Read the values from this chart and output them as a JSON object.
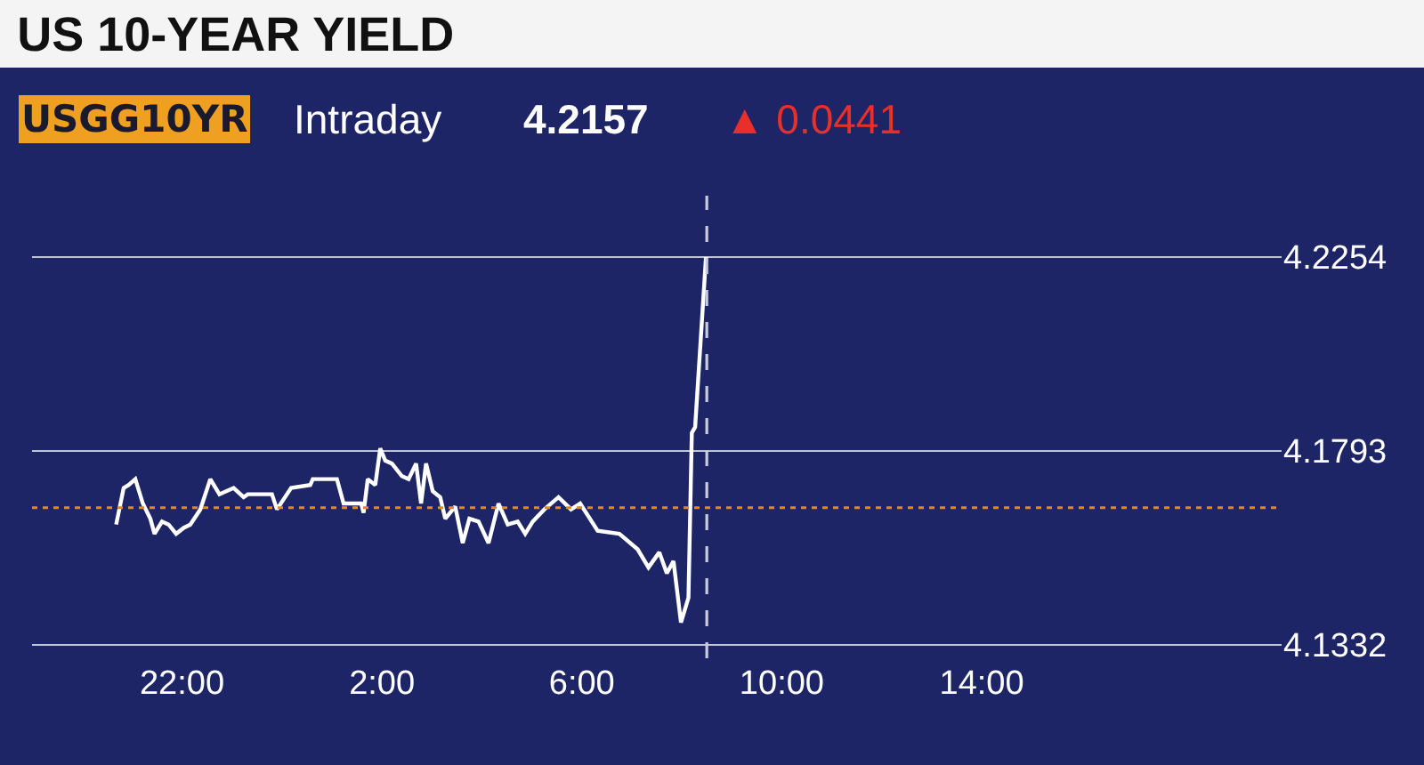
{
  "chart_data": {
    "type": "line",
    "title": "US 10-YEAR YIELD",
    "annotations": [
      "USGG10YR",
      "Intraday",
      "4.2157",
      "▲ 0.0441"
    ],
    "x": [
      "2000-01-01T20:41",
      "2000-01-01T20:50",
      "2000-01-01T20:56",
      "2000-01-01T21:04",
      "2000-01-01T21:13",
      "2000-01-01T21:22",
      "2000-01-01T21:27",
      "2000-01-01T21:36",
      "2000-01-01T21:44",
      "2000-01-01T21:53",
      "2000-01-01T22:02",
      "2000-01-01T22:10",
      "2000-01-01T22:22",
      "2000-01-01T22:34",
      "2000-01-01T22:45",
      "2000-01-01T23:02",
      "2000-01-01T23:14",
      "2000-01-01T23:19",
      "2000-01-01T23:48",
      "2000-01-01T23:54",
      "2000-01-02T00:11",
      "2000-01-02T00:34",
      "2000-01-02T00:37",
      "2000-01-02T01:06",
      "2000-01-02T01:14",
      "2000-01-02T01:35",
      "2000-01-02T01:38",
      "2000-01-02T01:43",
      "2000-01-02T01:52",
      "2000-01-02T01:58",
      "2000-01-02T02:04",
      "2000-01-02T02:12",
      "2000-01-02T02:24",
      "2000-01-02T02:32",
      "2000-01-02T02:41",
      "2000-01-02T02:47",
      "2000-01-02T02:53",
      "2000-01-02T03:01",
      "2000-01-02T03:10",
      "2000-01-02T03:16",
      "2000-01-02T03:28",
      "2000-01-02T03:37",
      "2000-01-02T03:45",
      "2000-01-02T03:56",
      "2000-01-02T04:08",
      "2000-01-02T04:20",
      "2000-01-02T04:31",
      "2000-01-02T04:43",
      "2000-01-02T04:52",
      "2000-01-02T05:01",
      "2000-01-02T05:15",
      "2000-01-02T05:32",
      "2000-01-02T05:47",
      "2000-01-02T05:58",
      "2000-01-02T06:19",
      "2000-01-02T06:45",
      "2000-01-02T07:07",
      "2000-01-02T07:20",
      "2000-01-02T07:33",
      "2000-01-02T07:42",
      "2000-01-02T07:50",
      "2000-01-02T07:59",
      "2000-01-02T08:08",
      "2000-01-02T08:12",
      "2000-01-02T08:16",
      "2000-01-02T08:29"
    ],
    "series": [
      {
        "color": "#ffffff",
        "values": [
          4.1618,
          4.1705,
          4.1712,
          4.1726,
          4.1668,
          4.1632,
          4.1596,
          4.1625,
          4.1618,
          4.1596,
          4.161,
          4.1618,
          4.1654,
          4.1726,
          4.169,
          4.1705,
          4.1683,
          4.169,
          4.169,
          4.1654,
          4.1705,
          4.1712,
          4.1726,
          4.1726,
          4.1668,
          4.1668,
          4.1646,
          4.1726,
          4.1712,
          4.1799,
          4.177,
          4.1763,
          4.1733,
          4.1726,
          4.1763,
          4.1668,
          4.1763,
          4.1697,
          4.1683,
          4.1632,
          4.1661,
          4.1574,
          4.1632,
          4.1625,
          4.1574,
          4.1668,
          4.1618,
          4.1625,
          4.1596,
          4.1625,
          4.1654,
          4.1683,
          4.1654,
          4.1668,
          4.1603,
          4.1596,
          4.1559,
          4.1516,
          4.1552,
          4.1502,
          4.1531,
          4.1385,
          4.1444,
          4.1836,
          4.185,
          4.2254
        ]
      }
    ],
    "xlim": [
      "2000-01-01T19:00",
      "2000-01-02T20:00"
    ],
    "xticks": [
      {
        "value": "2000-01-01T22:00",
        "label": "22:00"
      },
      {
        "value": "2000-01-02T02:00",
        "label": "2:00"
      },
      {
        "value": "2000-01-02T06:00",
        "label": "6:00"
      },
      {
        "value": "2000-01-02T10:00",
        "label": "10:00"
      },
      {
        "value": "2000-01-02T14:00",
        "label": "14:00"
      }
    ],
    "ylim": [
      4.13,
      4.24
    ],
    "yticks": [
      4.1332,
      4.1793,
      4.2254
    ],
    "grid": "y",
    "marker": "none",
    "line_style": "solid",
    "ref_lines": [
      {
        "axis": "y",
        "value": 4.1658,
        "color": "#e08a1e",
        "line_style": "dotted"
      },
      {
        "axis": "x",
        "value": "2000-01-02T08:30",
        "color": "#c8cce0",
        "line_style": "dashed"
      }
    ]
  }
}
